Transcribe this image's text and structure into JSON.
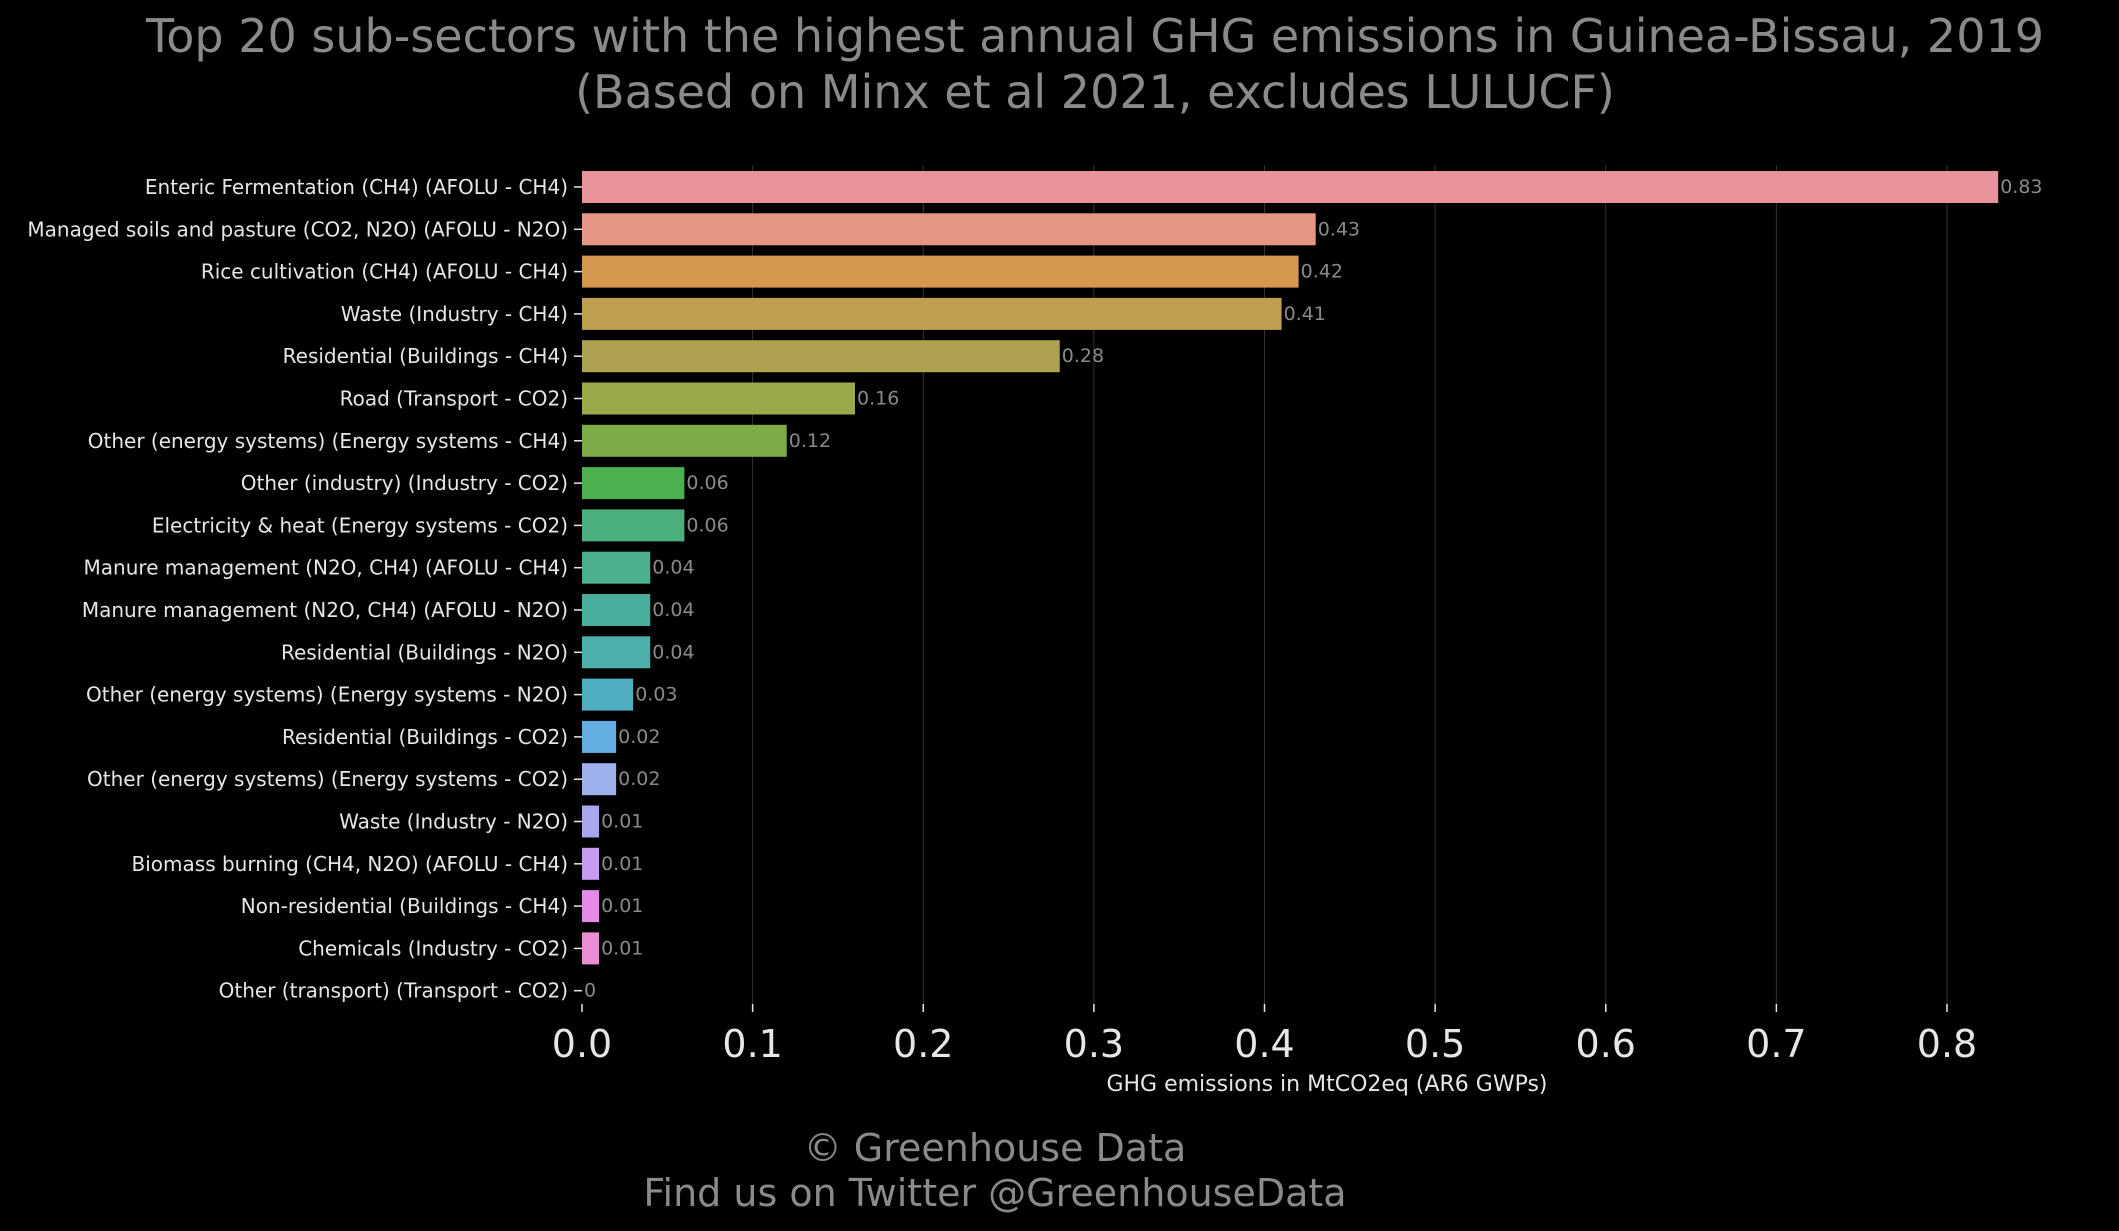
{
  "chart_data": {
    "type": "bar",
    "orientation": "horizontal",
    "title": "Top 20 sub-sectors with the highest annual GHG emissions in Guinea-Bissau, 2019",
    "subtitle": "(Based on Minx et al 2021, excludes LULUCF)",
    "xlabel": "GHG emissions in MtCO2eq (AR6 GWPs)",
    "ylabel": "",
    "xlim": [
      0,
      0.85
    ],
    "xticks": [
      0.0,
      0.1,
      0.2,
      0.3,
      0.4,
      0.5,
      0.6,
      0.7,
      0.8
    ],
    "xtick_labels": [
      "0.0",
      "0.1",
      "0.2",
      "0.3",
      "0.4",
      "0.5",
      "0.6",
      "0.7",
      "0.8"
    ],
    "grid": "vertical",
    "categories": [
      "Enteric Fermentation (CH4) (AFOLU - CH4)",
      "Managed soils and pasture (CO2, N2O) (AFOLU - N2O)",
      "Rice cultivation (CH4) (AFOLU - CH4)",
      "Waste (Industry - CH4)",
      "Residential (Buildings - CH4)",
      "Road (Transport - CO2)",
      "Other (energy systems) (Energy systems - CH4)",
      "Other (industry) (Industry - CO2)",
      "Electricity & heat (Energy systems - CO2)",
      "Manure management (N2O, CH4) (AFOLU - CH4)",
      "Manure management (N2O, CH4) (AFOLU - N2O)",
      "Residential (Buildings - N2O)",
      "Other (energy systems) (Energy systems - N2O)",
      "Residential (Buildings - CO2)",
      "Other (energy systems) (Energy systems - CO2)",
      "Waste (Industry - N2O)",
      "Biomass burning (CH4, N2O) (AFOLU - CH4)",
      "Non-residential (Buildings - CH4)",
      "Chemicals (Industry - CO2)",
      "Other (transport) (Transport - CO2)"
    ],
    "values": [
      0.83,
      0.43,
      0.42,
      0.41,
      0.28,
      0.16,
      0.12,
      0.06,
      0.06,
      0.04,
      0.04,
      0.04,
      0.03,
      0.02,
      0.02,
      0.01,
      0.01,
      0.01,
      0.01,
      0.0
    ],
    "value_labels": [
      "0.83",
      "0.43",
      "0.42",
      "0.41",
      "0.28",
      "0.16",
      "0.12",
      "0.06",
      "0.06",
      "0.04",
      "0.04",
      "0.04",
      "0.03",
      "0.02",
      "0.02",
      "0.01",
      "0.01",
      "0.01",
      "0.01",
      "0"
    ],
    "colors": [
      "#e8929b",
      "#e59784",
      "#d69750",
      "#c09f52",
      "#ada24f",
      "#98a84a",
      "#7eaa46",
      "#4cb04f",
      "#4bb07d",
      "#4cb08e",
      "#4bad9b",
      "#4daeaa",
      "#50adbf",
      "#62aee3",
      "#9fb1ec",
      "#a8a6ec",
      "#c79bed",
      "#e58ae8",
      "#eb8dd6",
      "#eb8dc0"
    ]
  },
  "colors": {
    "background": "#000000",
    "title": "#8a8a8a",
    "text": "#e6e6e6",
    "value_label": "#8a8a8a",
    "grid": "#333333"
  },
  "footer": {
    "line1": "© Greenhouse Data",
    "line2": "Find us on Twitter @GreenhouseData"
  }
}
